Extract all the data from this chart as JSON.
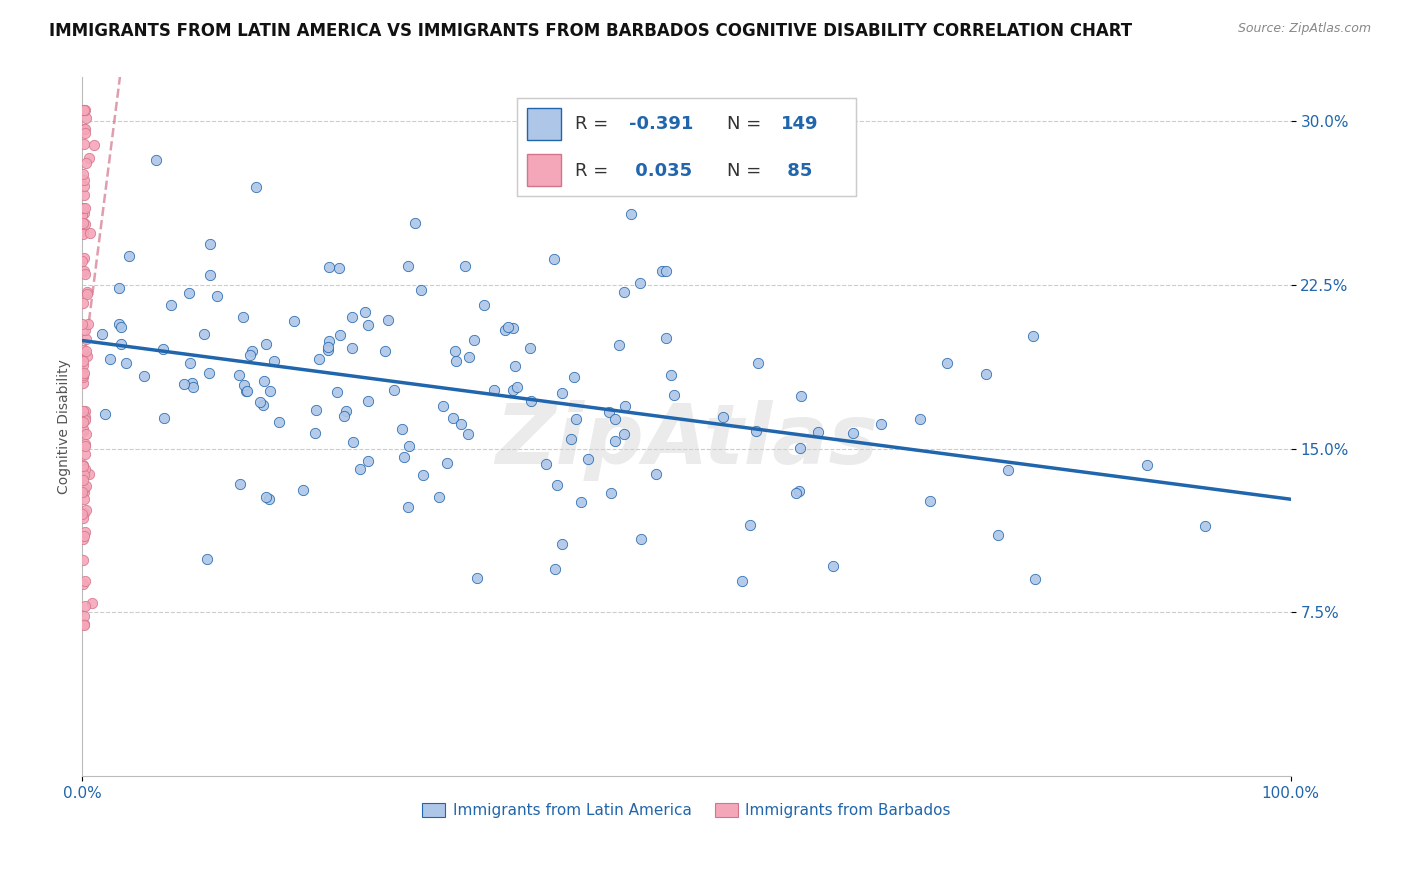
{
  "title": "IMMIGRANTS FROM LATIN AMERICA VS IMMIGRANTS FROM BARBADOS COGNITIVE DISABILITY CORRELATION CHART",
  "source": "Source: ZipAtlas.com",
  "ylabel": "Cognitive Disability",
  "xlim": [
    0,
    1.0
  ],
  "ylim": [
    0.0,
    0.32
  ],
  "yticks": [
    0.075,
    0.15,
    0.225,
    0.3
  ],
  "ytick_labels": [
    "7.5%",
    "15.0%",
    "22.5%",
    "30.0%"
  ],
  "xticks": [
    0.0,
    1.0
  ],
  "xtick_labels": [
    "0.0%",
    "100.0%"
  ],
  "series1_color": "#aec6e8",
  "series2_color": "#f4a7b9",
  "trend1_color": "#2166ac",
  "trend2_color": "#d4748a",
  "background_color": "#ffffff",
  "title_fontsize": 12,
  "axis_fontsize": 10,
  "tick_fontsize": 11,
  "legend_fontsize": 13,
  "watermark": "ZipAtlas",
  "series1_R": -0.391,
  "series1_N": 149,
  "series2_R": 0.035,
  "series2_N": 85,
  "seed1": 42,
  "seed2": 99,
  "legend_label1": "Immigrants from Latin America",
  "legend_label2": "Immigrants from Barbados"
}
